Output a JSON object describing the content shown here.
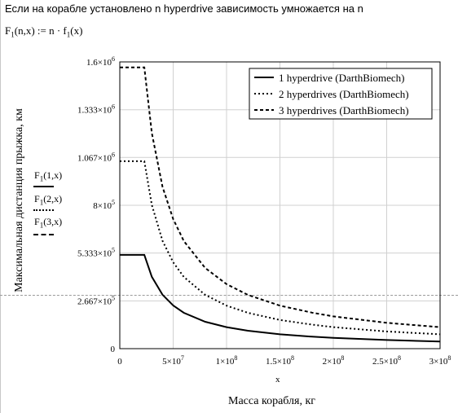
{
  "header": {
    "text": "Если на корабле установлено n hyperdrive зависимость умножается на n"
  },
  "formula": {
    "func": "F",
    "sub": "1",
    "rest": "(n,x) := n · f",
    "sub2": "1",
    "tail": "(x)"
  },
  "left_keys": [
    {
      "func": "F",
      "sub": "1",
      "args": "(1,x)",
      "style": "solid"
    },
    {
      "func": "F",
      "sub": "1",
      "args": "(2,x)",
      "style": "dotted"
    },
    {
      "func": "F",
      "sub": "1",
      "args": "(3,x)",
      "style": "dashed"
    }
  ],
  "chart_data": {
    "type": "line",
    "ylabel": "Максимальная дистанция прыжка, км",
    "xlabel_short": "x",
    "xlabel": "Масса корабля, кг",
    "xlim": [
      0,
      300000000
    ],
    "ylim": [
      0,
      1600000
    ],
    "grid": true,
    "legend_placement": "top-right",
    "xticks": [
      {
        "value": 0,
        "label": "0"
      },
      {
        "value": 50000000,
        "label": "5×10",
        "exp": "7"
      },
      {
        "value": 100000000,
        "label": "1×10",
        "exp": "8"
      },
      {
        "value": 150000000,
        "label": "1.5×10",
        "exp": "8"
      },
      {
        "value": 200000000,
        "label": "2×10",
        "exp": "8"
      },
      {
        "value": 250000000,
        "label": "2.5×10",
        "exp": "8"
      },
      {
        "value": 300000000,
        "label": "3×10",
        "exp": "8"
      }
    ],
    "yticks": [
      {
        "value": 0,
        "label": "0"
      },
      {
        "value": 266700,
        "label": "2.667×10",
        "exp": "5"
      },
      {
        "value": 533300,
        "label": "5.333×10",
        "exp": "5"
      },
      {
        "value": 800000,
        "label": "8×10",
        "exp": "5"
      },
      {
        "value": 1067000,
        "label": "1.067×10",
        "exp": "6"
      },
      {
        "value": 1333000,
        "label": "1.333×10",
        "exp": "6"
      },
      {
        "value": 1600000,
        "label": "1.6×10",
        "exp": "6"
      }
    ],
    "series": [
      {
        "name": "1 hyperdrive (DarthBiomech)",
        "style": "solid",
        "x": [
          0,
          23000000,
          30000000,
          40000000,
          50000000,
          60000000,
          80000000,
          100000000,
          120000000,
          150000000,
          180000000,
          200000000,
          250000000,
          300000000
        ],
        "y": [
          523000,
          523000,
          401000,
          301000,
          241000,
          200000,
          150000,
          120000,
          100000,
          80000,
          67000,
          60000,
          48000,
          40000
        ]
      },
      {
        "name": "2 hyperdrives (DarthBiomech)",
        "style": "dotted",
        "x": [
          0,
          23000000,
          30000000,
          40000000,
          50000000,
          60000000,
          80000000,
          100000000,
          120000000,
          150000000,
          180000000,
          200000000,
          250000000,
          300000000
        ],
        "y": [
          1046000,
          1046000,
          802000,
          602000,
          482000,
          400000,
          300000,
          240000,
          200000,
          160000,
          134000,
          120000,
          96000,
          80000
        ]
      },
      {
        "name": "3 hyperdrives (DarthBiomech)",
        "style": "dashed",
        "x": [
          0,
          23000000,
          30000000,
          40000000,
          50000000,
          60000000,
          80000000,
          100000000,
          120000000,
          150000000,
          180000000,
          200000000,
          250000000,
          300000000
        ],
        "y": [
          1569000,
          1569000,
          1203000,
          903000,
          723000,
          600000,
          450000,
          360000,
          300000,
          240000,
          201000,
          180000,
          144000,
          120000
        ]
      }
    ]
  }
}
